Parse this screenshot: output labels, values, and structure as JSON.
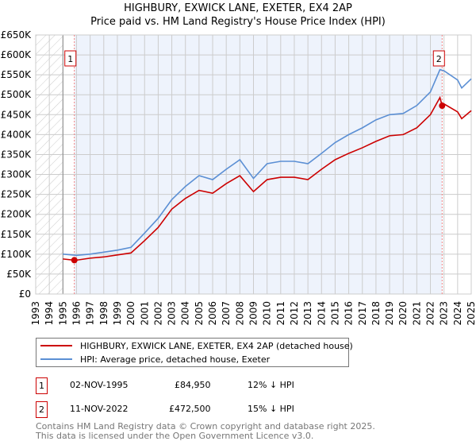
{
  "chart_data": {
    "type": "line",
    "title": "HIGHBURY, EXWICK LANE, EXETER, EX4 2AP",
    "subtitle": "Price paid vs. HM Land Registry's House Price Index (HPI)",
    "xlim": [
      1993,
      2025
    ],
    "ylim": [
      0,
      650000
    ],
    "x_ticks": [
      "1993",
      "1994",
      "1995",
      "1996",
      "1997",
      "1998",
      "1999",
      "2000",
      "2001",
      "2002",
      "2003",
      "2004",
      "2005",
      "2006",
      "2007",
      "2008",
      "2009",
      "2010",
      "2011",
      "2012",
      "2013",
      "2014",
      "2015",
      "2016",
      "2017",
      "2018",
      "2019",
      "2020",
      "2021",
      "2022",
      "2023",
      "2024",
      "2025"
    ],
    "y_ticks": [
      {
        "v": 0,
        "label": "£0"
      },
      {
        "v": 50000,
        "label": "£50K"
      },
      {
        "v": 100000,
        "label": "£100K"
      },
      {
        "v": 150000,
        "label": "£150K"
      },
      {
        "v": 200000,
        "label": "£200K"
      },
      {
        "v": 250000,
        "label": "£250K"
      },
      {
        "v": 300000,
        "label": "£300K"
      },
      {
        "v": 350000,
        "label": "£350K"
      },
      {
        "v": 400000,
        "label": "£400K"
      },
      {
        "v": 450000,
        "label": "£450K"
      },
      {
        "v": 500000,
        "label": "£500K"
      },
      {
        "v": 550000,
        "label": "£550K"
      },
      {
        "v": 600000,
        "label": "£600K"
      },
      {
        "v": 650000,
        "label": "£650K"
      }
    ],
    "grid": true,
    "series": [
      {
        "name": "HIGHBURY, EXWICK LANE, EXETER, EX4 2AP (detached house)",
        "color": "#cc0000",
        "x": [
          1995,
          1995.84,
          1996,
          1997,
          1998,
          1999,
          2000,
          2001,
          2002,
          2003,
          2004,
          2005,
          2006,
          2007,
          2008,
          2009,
          2010,
          2011,
          2012,
          2013,
          2014,
          2015,
          2016,
          2017,
          2018,
          2019,
          2020,
          2021,
          2022,
          2022.7,
          2022.86,
          2023,
          2024,
          2024.3,
          2025
        ],
        "y": [
          88000,
          84950,
          85000,
          90000,
          93000,
          98000,
          103000,
          134000,
          167000,
          213000,
          240000,
          260000,
          253000,
          277000,
          297000,
          257000,
          287000,
          293000,
          293000,
          287000,
          313000,
          337000,
          353000,
          367000,
          383000,
          397000,
          400000,
          417000,
          450000,
          493000,
          472500,
          477000,
          457000,
          440000,
          460000
        ]
      },
      {
        "name": "HPI: Average price, detached house, Exeter",
        "color": "#5b8fd4",
        "x": [
          1995,
          1996,
          1997,
          1998,
          1999,
          2000,
          2001,
          2002,
          2003,
          2004,
          2005,
          2006,
          2007,
          2008,
          2009,
          2010,
          2011,
          2012,
          2013,
          2014,
          2015,
          2016,
          2017,
          2018,
          2019,
          2020,
          2021,
          2022,
          2022.7,
          2023,
          2024,
          2024.3,
          2025
        ],
        "y": [
          100000,
          97000,
          100000,
          105000,
          110000,
          117000,
          153000,
          190000,
          237000,
          270000,
          297000,
          287000,
          313000,
          337000,
          290000,
          327000,
          333000,
          333000,
          327000,
          353000,
          380000,
          400000,
          417000,
          437000,
          450000,
          453000,
          473000,
          507000,
          563000,
          560000,
          537000,
          517000,
          540000
        ]
      }
    ],
    "annotations": [
      {
        "label": "1",
        "x": 1995.84,
        "y": 84950
      },
      {
        "label": "2",
        "x": 2022.86,
        "y": 472500
      }
    ],
    "legend": "bottom"
  },
  "table": [
    {
      "num": "1",
      "date": "02-NOV-1995",
      "price": "£84,950",
      "hpi": "12% ↓ HPI"
    },
    {
      "num": "2",
      "date": "11-NOV-2022",
      "price": "£472,500",
      "hpi": "15% ↓ HPI"
    }
  ],
  "footer": {
    "line1": "Contains HM Land Registry data © Crown copyright and database right 2025.",
    "line2": "This data is licensed under the Open Government Licence v3.0."
  }
}
